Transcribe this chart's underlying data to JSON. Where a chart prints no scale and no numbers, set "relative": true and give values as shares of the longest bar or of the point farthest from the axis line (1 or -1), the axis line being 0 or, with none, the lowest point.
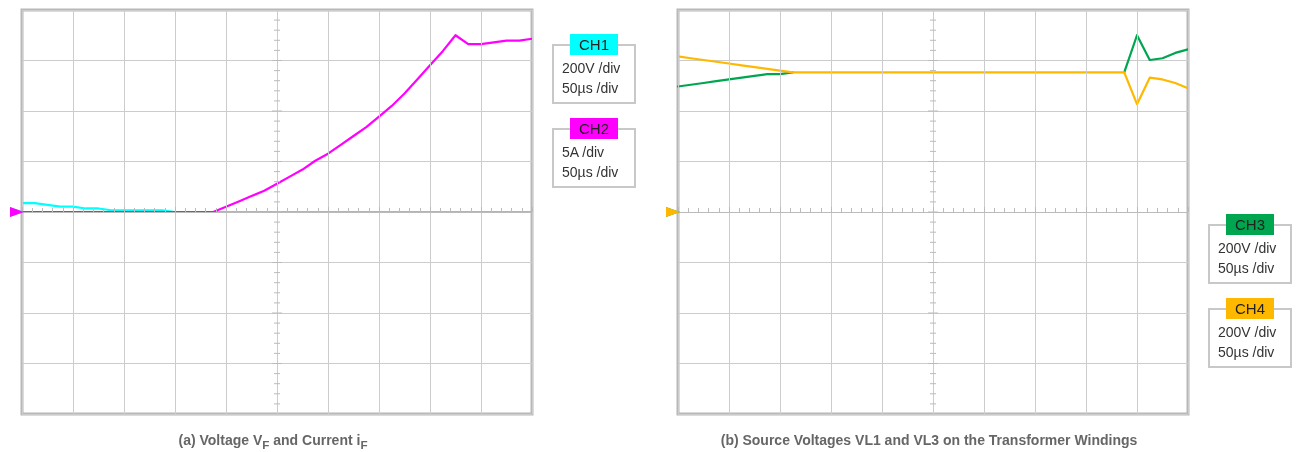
{
  "chart_data": [
    {
      "type": "line",
      "title": "(a) Voltage V$_{F}$ and Current i$_{F}$",
      "relative": true,
      "grid": true,
      "legend": "top right",
      "categories": [
        null,
        null,
        null,
        null,
        null,
        null,
        null,
        null,
        null,
        null,
        null,
        null,
        null,
        null,
        null,
        null,
        null,
        null,
        null,
        null,
        null,
        null,
        null,
        null,
        null,
        null,
        null,
        null,
        null,
        null,
        null,
        null,
        null,
        null,
        null,
        null,
        null,
        null,
        null,
        null,
        null
      ],
      "annotations": [
        "200V /div",
        "50µs /div",
        "5A /div",
        "50µs /div"
      ],
      "series": [
        {
          "name": "CH1",
          "color": "#00ffff",
          "values": [
            0.05,
            0.05,
            0.04,
            0.03,
            0.03,
            0.02,
            0.02,
            0.01,
            0.01,
            0.01,
            0.01,
            0.01,
            0,
            0,
            0,
            0,
            0,
            0,
            0,
            0,
            0,
            0,
            0,
            0,
            0,
            0,
            0,
            0,
            0,
            0,
            0,
            0,
            0,
            0,
            0,
            0,
            0,
            0,
            0,
            0,
            0
          ]
        },
        {
          "name": "CH2",
          "color": "#ff00ff",
          "values": [
            0,
            0,
            0,
            0,
            0,
            0,
            0,
            0,
            0,
            0,
            0,
            0,
            0,
            0,
            0,
            0,
            0.03,
            0.06,
            0.09,
            0.12,
            0.16,
            0.2,
            0.24,
            0.29,
            0.33,
            0.38,
            0.43,
            0.48,
            0.54,
            0.6,
            0.67,
            0.75,
            0.83,
            0.91,
            1,
            0.95,
            0.95,
            0.96,
            0.97,
            0.97,
            0.98
          ]
        }
      ]
    },
    {
      "type": "line",
      "title": "(b) Source Voltages VL1 and VL3 on the Transformer Windings",
      "relative": true,
      "grid": true,
      "legend": "bottom right",
      "categories": [
        null,
        null,
        null,
        null,
        null,
        null,
        null,
        null,
        null,
        null,
        null,
        null,
        null,
        null,
        null,
        null,
        null,
        null,
        null,
        null,
        null,
        null,
        null,
        null,
        null,
        null,
        null,
        null,
        null,
        null,
        null,
        null,
        null,
        null,
        null,
        null,
        null,
        null,
        null,
        null,
        null
      ],
      "annotations": [
        "200V /div",
        "50µs /div",
        "200V /div",
        "50µs /div"
      ],
      "series": [
        {
          "name": "CH3",
          "color": "#00a550",
          "values": [
            0.71,
            0.72,
            0.73,
            0.74,
            0.75,
            0.76,
            0.77,
            0.78,
            0.78,
            0.79,
            null,
            null,
            null,
            null,
            null,
            null,
            null,
            null,
            null,
            null,
            null,
            null,
            null,
            null,
            null,
            null,
            null,
            null,
            null,
            null,
            null,
            null,
            null,
            null,
            null,
            0.79,
            1,
            0.86,
            0.87,
            0.9,
            0.92
          ]
        },
        {
          "name": "CH4",
          "color": "#ffb800",
          "values": [
            0.88,
            0.87,
            0.86,
            0.85,
            0.84,
            0.83,
            0.82,
            0.81,
            0.8,
            0.79,
            0.79,
            0.79,
            0.79,
            0.79,
            0.79,
            0.79,
            0.79,
            0.79,
            0.79,
            0.79,
            0.79,
            0.79,
            0.79,
            0.79,
            0.79,
            0.79,
            0.79,
            0.79,
            0.79,
            0.79,
            0.79,
            0.79,
            0.79,
            0.79,
            0.79,
            0.79,
            0.61,
            0.76,
            0.75,
            0.73,
            0.7
          ]
        }
      ]
    }
  ]
}
